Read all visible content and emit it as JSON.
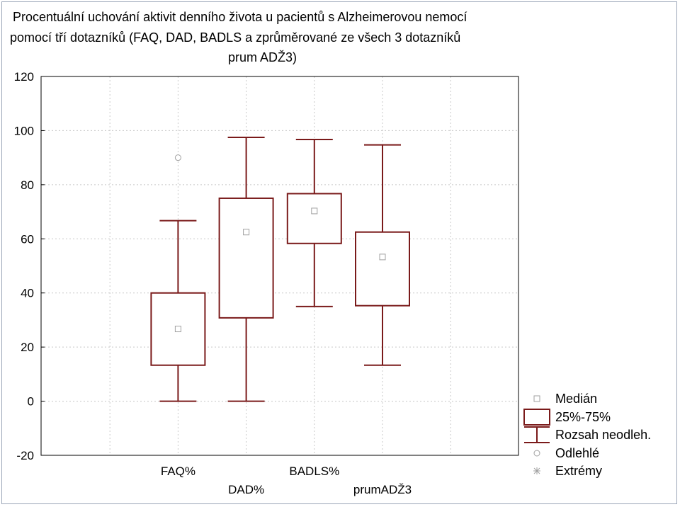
{
  "chart_data": {
    "type": "box",
    "title_lines": [
      "Procentuální uchování aktivit denního života u pacientů s Alzheimerovou nemocí",
      "pomocí tří dotazníků (FAQ, DAD, BADLS a zprůměrované ze všech 3 dotazníků",
      "prum ADŽ3)"
    ],
    "ylim": [
      -20,
      120
    ],
    "yticks": [
      120,
      100,
      80,
      60,
      40,
      20,
      0,
      -20
    ],
    "grid": true,
    "categories": [
      "FAQ%",
      "DAD%",
      "BADLS%",
      "prumADŽ3"
    ],
    "boxes": [
      {
        "name": "FAQ%",
        "median": 26.7,
        "q1": 13.3,
        "q3": 40.0,
        "min": 0.0,
        "max": 66.7,
        "outliers": [
          90.0
        ],
        "extremes": []
      },
      {
        "name": "DAD%",
        "median": 62.5,
        "q1": 30.8,
        "q3": 75.0,
        "min": 0.0,
        "max": 97.5,
        "outliers": [],
        "extremes": []
      },
      {
        "name": "BADLS%",
        "median": 70.3,
        "q1": 58.3,
        "q3": 76.7,
        "min": 35.0,
        "max": 96.7,
        "outliers": [],
        "extremes": []
      },
      {
        "name": "prumADŽ3",
        "median": 53.3,
        "q1": 35.3,
        "q3": 62.5,
        "min": 13.3,
        "max": 94.7,
        "outliers": [],
        "extremes": []
      }
    ],
    "legend": {
      "position": "bottom-right",
      "items": [
        {
          "label": "Medián",
          "symbol": "square"
        },
        {
          "label": "25%-75%",
          "symbol": "box"
        },
        {
          "label": "Rozsah neodleh.",
          "symbol": "whisker"
        },
        {
          "label": "Odlehlé",
          "symbol": "circle"
        },
        {
          "label": "Extrémy",
          "symbol": "asterisk"
        }
      ]
    },
    "colors": {
      "box": "#7a1a1a",
      "marker": "#a0a0a0",
      "grid": "#c8c8c8",
      "axis": "#000000"
    }
  }
}
